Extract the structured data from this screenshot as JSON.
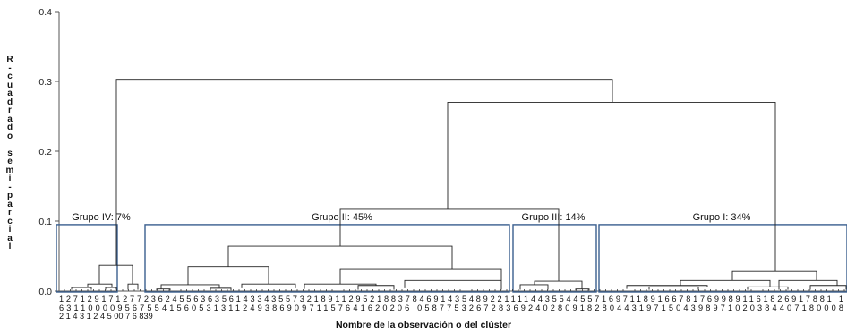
{
  "chart_data": {
    "type": "dendrogram",
    "xlabel": "Nombre de la observación o del clúster",
    "ylabel": "R-cuadrado semi-parcial",
    "ylim": [
      0,
      0.4
    ],
    "y_ticks": [
      "0.0",
      "0.1",
      "0.2",
      "0.3",
      "0.4"
    ],
    "groups": [
      {
        "label": "Grupo IV: 7%"
      },
      {
        "label": "Grupo II: 45%"
      },
      {
        "label": "Grupo III: 14%"
      },
      {
        "label": "Grupo I: 34%"
      }
    ],
    "top_merges": [
      {
        "between": [
          "Grupo IV",
          "Grupos II-III-I"
        ],
        "height": 0.303
      },
      {
        "between": [
          "Grupos II-III",
          "Grupo I"
        ],
        "height": 0.27
      },
      {
        "between": [
          "Grupo II",
          "Grupo III"
        ],
        "height": 0.118
      }
    ],
    "group_merges": [
      {
        "group": "Grupo IV",
        "height": 0.037
      },
      {
        "group": "Grupo II",
        "height": 0.064
      },
      {
        "group": "Grupo III",
        "height": 0.014
      },
      {
        "group": "Grupo I",
        "height": 0.028
      }
    ],
    "leaf_labels": {
      "row1": "12712917127723624556363561433435573218911295218837846914354892211114435544557169711891667817699891161826917881 1",
      "row2": "631100009567554156053131124938690971157641620206 0587753267283692402809182804431971504398971020384407180008",
      "row3": "2 1 4 3 1 2 4 5 00 7 6 839"
    }
  }
}
